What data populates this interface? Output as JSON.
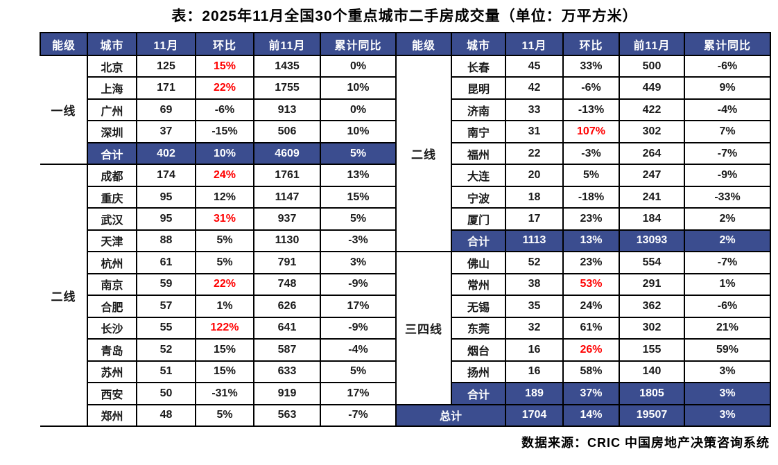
{
  "title": "表：2025年11月全国30个重点城市二手房成交量（单位：万平方米）",
  "footer": "数据来源：CRIC 中国房地产决策咨询系统",
  "colors": {
    "header_bg": "#3B4D8F",
    "subtotal_bg": "#3B4D8F",
    "highlight_red": "#FF0000",
    "border": "#000000",
    "header_text": "#FFFFFF",
    "body_text": "#1A1A1A"
  },
  "chart_data": {
    "type": "table",
    "title": "表：2025年11月全国30个重点城市二手房成交量（单位：万平方米）",
    "columns": [
      "能级",
      "城市",
      "11月",
      "环比",
      "前11月",
      "累计同比"
    ],
    "panels": [
      {
        "blocks": [
          {
            "tier": "一线",
            "rows": [
              {
                "city": "北京",
                "nov": "125",
                "mom": "15%",
                "mom_red": true,
                "prev": "1435",
                "yoy": "0%"
              },
              {
                "city": "上海",
                "nov": "171",
                "mom": "22%",
                "mom_red": true,
                "prev": "1755",
                "yoy": "10%"
              },
              {
                "city": "广州",
                "nov": "69",
                "mom": "-6%",
                "mom_red": false,
                "prev": "913",
                "yoy": "0%"
              },
              {
                "city": "深圳",
                "nov": "37",
                "mom": "-15%",
                "mom_red": false,
                "prev": "506",
                "yoy": "10%"
              }
            ],
            "sum": {
              "label": "合计",
              "nov": "402",
              "mom": "10%",
              "prev": "4609",
              "yoy": "5%"
            }
          },
          {
            "tier": "二线",
            "rows": [
              {
                "city": "成都",
                "nov": "174",
                "mom": "24%",
                "mom_red": true,
                "prev": "1761",
                "yoy": "13%"
              },
              {
                "city": "重庆",
                "nov": "95",
                "mom": "12%",
                "mom_red": false,
                "prev": "1147",
                "yoy": "15%"
              },
              {
                "city": "武汉",
                "nov": "95",
                "mom": "31%",
                "mom_red": true,
                "prev": "937",
                "yoy": "5%"
              },
              {
                "city": "天津",
                "nov": "88",
                "mom": "5%",
                "mom_red": false,
                "prev": "1130",
                "yoy": "-3%"
              },
              {
                "city": "杭州",
                "nov": "61",
                "mom": "5%",
                "mom_red": false,
                "prev": "791",
                "yoy": "3%"
              },
              {
                "city": "南京",
                "nov": "59",
                "mom": "22%",
                "mom_red": true,
                "prev": "748",
                "yoy": "-9%"
              },
              {
                "city": "合肥",
                "nov": "57",
                "mom": "1%",
                "mom_red": false,
                "prev": "626",
                "yoy": "17%"
              },
              {
                "city": "长沙",
                "nov": "55",
                "mom": "122%",
                "mom_red": true,
                "prev": "641",
                "yoy": "-9%"
              },
              {
                "city": "青岛",
                "nov": "52",
                "mom": "15%",
                "mom_red": false,
                "prev": "587",
                "yoy": "-4%"
              },
              {
                "city": "苏州",
                "nov": "51",
                "mom": "15%",
                "mom_red": false,
                "prev": "633",
                "yoy": "5%"
              },
              {
                "city": "西安",
                "nov": "50",
                "mom": "-31%",
                "mom_red": false,
                "prev": "919",
                "yoy": "17%"
              },
              {
                "city": "郑州",
                "nov": "48",
                "mom": "5%",
                "mom_red": false,
                "prev": "563",
                "yoy": "-7%"
              }
            ],
            "sum": null
          }
        ]
      },
      {
        "blocks": [
          {
            "tier": "二线",
            "rows": [
              {
                "city": "长春",
                "nov": "45",
                "mom": "33%",
                "mom_red": false,
                "prev": "500",
                "yoy": "-6%"
              },
              {
                "city": "昆明",
                "nov": "42",
                "mom": "-6%",
                "mom_red": false,
                "prev": "449",
                "yoy": "9%"
              },
              {
                "city": "济南",
                "nov": "33",
                "mom": "-13%",
                "mom_red": false,
                "prev": "422",
                "yoy": "-4%"
              },
              {
                "city": "南宁",
                "nov": "31",
                "mom": "107%",
                "mom_red": true,
                "prev": "302",
                "yoy": "7%"
              },
              {
                "city": "福州",
                "nov": "22",
                "mom": "-3%",
                "mom_red": false,
                "prev": "264",
                "yoy": "-7%"
              },
              {
                "city": "大连",
                "nov": "20",
                "mom": "5%",
                "mom_red": false,
                "prev": "247",
                "yoy": "-9%"
              },
              {
                "city": "宁波",
                "nov": "18",
                "mom": "-18%",
                "mom_red": false,
                "prev": "241",
                "yoy": "-33%"
              },
              {
                "city": "厦门",
                "nov": "17",
                "mom": "23%",
                "mom_red": false,
                "prev": "184",
                "yoy": "2%"
              }
            ],
            "sum": {
              "label": "合计",
              "nov": "1113",
              "mom": "13%",
              "prev": "13093",
              "yoy": "2%"
            }
          },
          {
            "tier": "三四线",
            "rows": [
              {
                "city": "佛山",
                "nov": "52",
                "mom": "23%",
                "mom_red": false,
                "prev": "554",
                "yoy": "-7%"
              },
              {
                "city": "常州",
                "nov": "38",
                "mom": "53%",
                "mom_red": true,
                "prev": "291",
                "yoy": "1%"
              },
              {
                "city": "无锡",
                "nov": "35",
                "mom": "24%",
                "mom_red": false,
                "prev": "362",
                "yoy": "-6%"
              },
              {
                "city": "东莞",
                "nov": "32",
                "mom": "61%",
                "mom_red": false,
                "prev": "302",
                "yoy": "21%"
              },
              {
                "city": "烟台",
                "nov": "16",
                "mom": "26%",
                "mom_red": true,
                "prev": "155",
                "yoy": "59%"
              },
              {
                "city": "扬州",
                "nov": "16",
                "mom": "58%",
                "mom_red": false,
                "prev": "140",
                "yoy": "3%"
              }
            ],
            "sum": {
              "label": "合计",
              "nov": "189",
              "mom": "37%",
              "prev": "1805",
              "yoy": "3%"
            }
          }
        ],
        "total": {
          "label": "总计",
          "nov": "1704",
          "mom": "14%",
          "prev": "19507",
          "yoy": "3%"
        }
      }
    ]
  }
}
